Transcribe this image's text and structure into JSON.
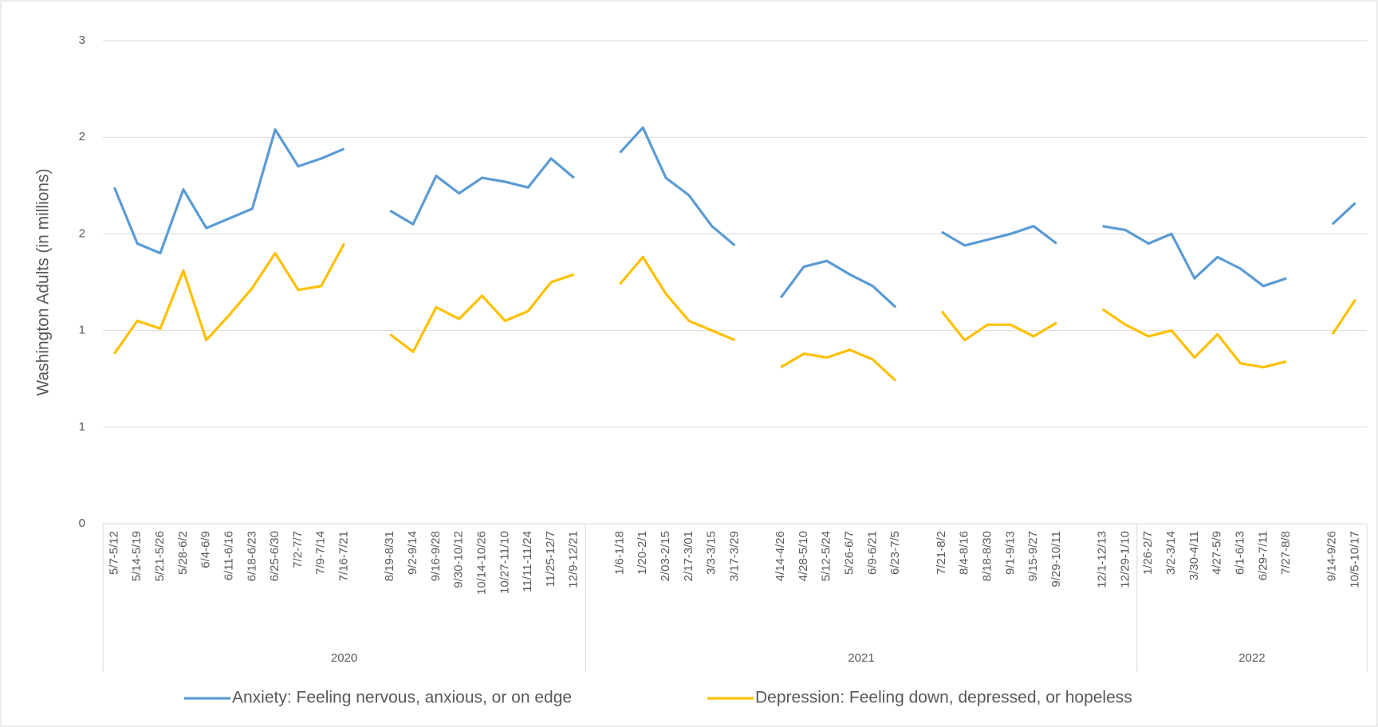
{
  "chart_data": {
    "type": "line",
    "y_label": "Washington Adults (in millions)",
    "categories": [
      "5/7-5/12",
      "5/14-5/19",
      "5/21-5/26",
      "5/28-6/2",
      "6/4-6/9",
      "6/11-6/16",
      "6/18-6/23",
      "6/25-6/30",
      "7/2-7/7",
      "7/9-7/14",
      "7/16-7/21",
      null,
      "8/19-8/31",
      "9/2-9/14",
      "9/16-9/28",
      "9/30-10/12",
      "10/14-10/26",
      "10/27-11/10",
      "11/11-11/24",
      "11/25-12/7",
      "12/9-12/21",
      null,
      "1/6-1/18",
      "1/20-2/1",
      "2/03-2/15",
      "2/17-3/01",
      "3/3-3/15",
      "3/17-3/29",
      null,
      "4/14-4/26",
      "4/28-5/10",
      "5/12-5/24",
      "5/26-6/7",
      "6/9-6/21",
      "6/23-7/5",
      null,
      "7/21-8/2",
      "8/4-8/16",
      "8/18-8/30",
      "9/1-9/13",
      "9/15-9/27",
      "9/29-10/11",
      null,
      "12/1-12/13",
      "12/29-1/10",
      "1/26-2/7",
      "3/2-3/14",
      "3/30-4/11",
      "4/27-5/9",
      "6/1-6/13",
      "6/29-7/11",
      "7/27-8/8",
      null,
      "9/14-9/26",
      "10/5-10/17"
    ],
    "groups": [
      {
        "label": "2020",
        "count": 21
      },
      {
        "label": "2021",
        "count": 24
      },
      {
        "label": "2022",
        "count": 10
      }
    ],
    "series": [
      {
        "name": "Anxiety: Feeling nervous, anxious, or on edge",
        "color": "#5b9bd5",
        "values": [
          1.74,
          1.45,
          1.4,
          1.73,
          1.53,
          1.58,
          1.63,
          2.04,
          1.85,
          1.89,
          1.94,
          null,
          1.62,
          1.55,
          1.8,
          1.71,
          1.79,
          1.77,
          1.74,
          1.89,
          1.79,
          null,
          1.92,
          2.05,
          1.79,
          1.7,
          1.54,
          1.44,
          null,
          1.17,
          1.33,
          1.36,
          1.29,
          1.23,
          1.12,
          null,
          1.51,
          1.44,
          1.47,
          1.5,
          1.54,
          1.45,
          null,
          1.54,
          1.52,
          1.45,
          1.5,
          1.27,
          1.38,
          1.32,
          1.23,
          1.27,
          null,
          1.55,
          1.66
        ]
      },
      {
        "name": "Depression: Feeling down, depressed, or hopeless",
        "color": "#ffc000",
        "values": [
          0.88,
          1.05,
          1.01,
          1.31,
          0.95,
          1.08,
          1.22,
          1.4,
          1.21,
          1.23,
          1.45,
          null,
          0.98,
          0.89,
          1.12,
          1.06,
          1.18,
          1.05,
          1.1,
          1.25,
          1.29,
          null,
          1.24,
          1.38,
          1.19,
          1.05,
          1.0,
          0.95,
          null,
          0.81,
          0.88,
          0.86,
          0.9,
          0.85,
          0.74,
          null,
          1.1,
          0.95,
          1.03,
          1.03,
          0.97,
          1.04,
          null,
          1.11,
          1.03,
          0.97,
          1.0,
          0.86,
          0.98,
          0.83,
          0.81,
          0.84,
          null,
          0.98,
          1.16
        ]
      }
    ],
    "ylim": [
      0,
      2.5
    ],
    "yticks": [
      0,
      {
        "value": 0.5,
        "label": "1"
      },
      1,
      {
        "value": 1.5,
        "label": "2"
      },
      2,
      {
        "value": 2.5,
        "label": "3"
      }
    ],
    "grid": true,
    "legend": "bottom"
  }
}
